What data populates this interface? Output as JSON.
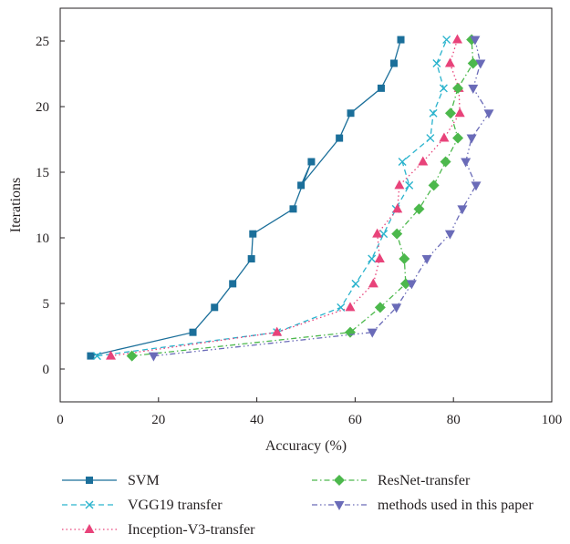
{
  "chart_data": {
    "type": "line",
    "title": "",
    "xlabel": "Accuracy (%)",
    "ylabel": "Iterations",
    "xlim": [
      0,
      100
    ],
    "ylim": [
      -2.5,
      27.5
    ],
    "xticks": [
      0,
      20,
      40,
      60,
      80,
      100
    ],
    "yticks": [
      0,
      5,
      10,
      15,
      20,
      25
    ],
    "grid": false,
    "legend_position": "bottom",
    "series": [
      {
        "name": "SVM",
        "color": "#1b6f9a",
        "marker": "square",
        "linestyle": "solid",
        "x": [
          6.2,
          27.0,
          31.4,
          35.1,
          38.9,
          39.2,
          47.4,
          51.1,
          49.0,
          56.8,
          59.1,
          65.3,
          67.9,
          69.3
        ],
        "y": [
          1.0,
          2.8,
          4.7,
          6.5,
          8.4,
          10.3,
          12.2,
          15.8,
          14.0,
          17.6,
          19.5,
          21.4,
          23.3,
          25.1
        ]
      },
      {
        "name": "VGG19 transfer",
        "color": "#2ab3cd",
        "marker": "x",
        "linestyle": "dashed",
        "x": [
          7.5,
          44.1,
          57.1,
          60.1,
          63.4,
          65.8,
          68.3,
          71.0,
          69.6,
          75.3,
          75.9,
          78.0,
          76.6,
          78.6
        ],
        "y": [
          1.0,
          2.8,
          4.7,
          6.5,
          8.4,
          10.3,
          12.2,
          14.0,
          15.8,
          17.6,
          19.5,
          21.4,
          23.3,
          25.1
        ]
      },
      {
        "name": "Inception-V3-transfer",
        "color": "#e8437a",
        "marker": "triangle-up",
        "linestyle": "dotted",
        "x": [
          10.3,
          44.1,
          59.0,
          63.7,
          65.0,
          64.5,
          68.6,
          69.0,
          73.8,
          78.1,
          81.3,
          81.1,
          79.3,
          80.8
        ],
        "y": [
          1.0,
          2.8,
          4.7,
          6.5,
          8.4,
          10.3,
          12.2,
          14.0,
          15.8,
          17.6,
          19.5,
          21.4,
          23.3,
          25.1
        ]
      },
      {
        "name": "ResNet-transfer",
        "color": "#4cb84c",
        "marker": "diamond",
        "linestyle": "dashdot",
        "x": [
          14.6,
          59.0,
          65.1,
          70.3,
          70.0,
          68.5,
          73.0,
          76.0,
          78.4,
          80.9,
          79.4,
          80.9,
          84.0,
          83.7
        ],
        "y": [
          1.0,
          2.8,
          4.7,
          6.5,
          8.4,
          10.3,
          12.2,
          14.0,
          15.8,
          17.6,
          19.5,
          21.4,
          23.3,
          25.1
        ]
      },
      {
        "name": "methods used in this paper",
        "color": "#6a6bb8",
        "marker": "triangle-down",
        "linestyle": "dashdotdot",
        "x": [
          19.0,
          63.5,
          68.4,
          71.5,
          74.6,
          79.3,
          81.8,
          84.6,
          82.5,
          83.7,
          87.2,
          84.0,
          85.5,
          84.4
        ],
        "y": [
          1.0,
          2.8,
          4.7,
          6.5,
          8.4,
          10.3,
          12.2,
          14.0,
          15.8,
          17.6,
          19.5,
          21.4,
          23.3,
          25.1
        ]
      }
    ]
  }
}
